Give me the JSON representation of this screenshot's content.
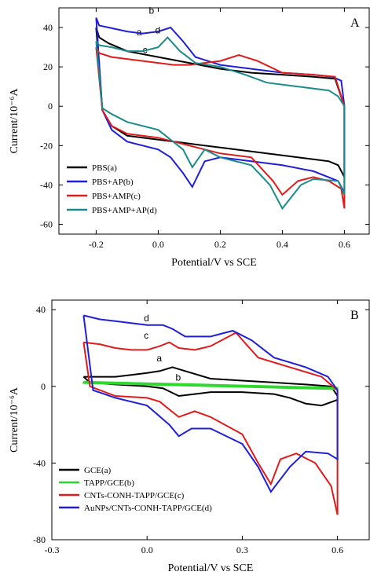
{
  "chart_data": [
    {
      "type": "line",
      "panel_label": "A",
      "xlabel": "Potential/V vs SCE",
      "ylabel": "Current/10⁻⁶A",
      "xlim": [
        -0.32,
        0.68
      ],
      "ylim": [
        -65,
        50
      ],
      "xticks": [
        "-0.2",
        "0.0",
        "0.2",
        "0.4",
        "0.6"
      ],
      "yticks": [
        "-60",
        "-40",
        "-20",
        "0",
        "20",
        "40"
      ],
      "legend_position": "bottom-left",
      "series": [
        {
          "name": "PBS(a)",
          "label": "a",
          "color": "#000000",
          "x": [
            -0.2,
            -0.19,
            -0.16,
            -0.1,
            0.0,
            0.1,
            0.2,
            0.3,
            0.4,
            0.5,
            0.57,
            0.6,
            0.6,
            0.58,
            0.55,
            0.5,
            0.4,
            0.3,
            0.2,
            0.1,
            0.0,
            -0.1,
            -0.15,
            -0.18,
            -0.2
          ],
          "y": [
            40,
            35,
            32,
            28,
            25,
            22,
            19,
            17,
            16,
            15,
            14,
            0,
            -36,
            -30,
            -28,
            -27,
            -25,
            -23,
            -21,
            -19,
            -17,
            -15,
            -10,
            -2,
            40
          ]
        },
        {
          "name": "PBS+AP(b)",
          "label": "b",
          "color": "#1f1fd9",
          "x": [
            -0.2,
            -0.19,
            -0.16,
            -0.1,
            -0.05,
            0.0,
            0.04,
            0.08,
            0.12,
            0.2,
            0.3,
            0.4,
            0.5,
            0.56,
            0.59,
            0.6,
            0.6,
            0.58,
            0.5,
            0.4,
            0.3,
            0.2,
            0.15,
            0.11,
            0.08,
            0.04,
            0.0,
            -0.1,
            -0.15,
            -0.18,
            -0.2
          ],
          "y": [
            45,
            41,
            40,
            38,
            37,
            38,
            40,
            33,
            25,
            21,
            19,
            17,
            16,
            15,
            13,
            0,
            -44,
            -38,
            -33,
            -30,
            -28,
            -26,
            -28,
            -41,
            -34,
            -26,
            -22,
            -18,
            -12,
            -2,
            45
          ]
        },
        {
          "name": "PBS+AMP(c)",
          "label": "c",
          "color": "#e01b1b",
          "x": [
            -0.2,
            -0.19,
            -0.15,
            -0.1,
            -0.05,
            0.0,
            0.05,
            0.1,
            0.15,
            0.2,
            0.26,
            0.32,
            0.4,
            0.5,
            0.57,
            0.6,
            0.6,
            0.59,
            0.55,
            0.5,
            0.45,
            0.4,
            0.37,
            0.3,
            0.2,
            0.1,
            0.0,
            -0.1,
            -0.15,
            -0.18,
            -0.2
          ],
          "y": [
            30,
            27,
            25,
            24,
            23,
            22,
            21,
            21,
            22,
            23,
            26,
            23,
            17,
            16,
            15,
            0,
            -52,
            -42,
            -38,
            -36,
            -38,
            -45,
            -38,
            -26,
            -24,
            -20,
            -16,
            -14,
            -10,
            -2,
            30
          ]
        },
        {
          "name": "PBS+AMP+AP(d)",
          "label": "d",
          "color": "#1a8a8a",
          "x": [
            -0.2,
            -0.19,
            -0.15,
            -0.1,
            -0.05,
            0.0,
            0.03,
            0.07,
            0.12,
            0.2,
            0.28,
            0.35,
            0.45,
            0.55,
            0.58,
            0.6,
            0.6,
            0.58,
            0.5,
            0.46,
            0.4,
            0.36,
            0.3,
            0.2,
            0.15,
            0.11,
            0.08,
            0.0,
            -0.1,
            -0.15,
            -0.18,
            -0.2
          ],
          "y": [
            33,
            31,
            30,
            28,
            28,
            30,
            35,
            28,
            22,
            20,
            16,
            12,
            10,
            8,
            5,
            0,
            -45,
            -38,
            -37,
            -40,
            -52,
            -40,
            -30,
            -26,
            -22,
            -31,
            -22,
            -12,
            -8,
            -4,
            -1,
            33
          ]
        }
      ]
    },
    {
      "type": "line",
      "panel_label": "B",
      "xlabel": "Potential/V vs SCE",
      "ylabel": "Current/10⁻⁶A",
      "xlim": [
        -0.3,
        0.7
      ],
      "ylim": [
        -80,
        45
      ],
      "xticks": [
        "-0.3",
        "0.0",
        "0.3",
        "0.6"
      ],
      "yticks": [
        "-80",
        "-40",
        "0",
        "40"
      ],
      "legend_position": "bottom-left",
      "series": [
        {
          "name": "GCE(a)",
          "label": "a",
          "color": "#000000",
          "x": [
            -0.2,
            -0.15,
            -0.1,
            -0.05,
            0.0,
            0.04,
            0.08,
            0.12,
            0.2,
            0.3,
            0.4,
            0.5,
            0.58,
            0.6,
            0.6,
            0.55,
            0.5,
            0.45,
            0.4,
            0.3,
            0.2,
            0.15,
            0.1,
            0.05,
            0.0,
            -0.1,
            -0.18,
            -0.2
          ],
          "y": [
            5,
            5,
            5,
            6,
            7,
            8,
            10,
            8,
            4,
            3,
            2,
            1,
            0,
            -5,
            -7,
            -10,
            -9,
            -6,
            -4,
            -3,
            -3,
            -4,
            -5,
            -1,
            0,
            1,
            2,
            5
          ]
        },
        {
          "name": "TAPP/GCE(b)",
          "label": "b",
          "color": "#2ed82e",
          "x": [
            -0.2,
            -0.1,
            0.0,
            0.1,
            0.2,
            0.3,
            0.4,
            0.5,
            0.6,
            0.6,
            0.5,
            0.4,
            0.3,
            0.2,
            0.1,
            0.0,
            -0.1,
            -0.2,
            -0.2
          ],
          "y": [
            2.5,
            2.1,
            1.7,
            1.3,
            0.9,
            0.5,
            0.1,
            -0.3,
            -0.7,
            -1.5,
            -1.1,
            -0.7,
            -0.3,
            0.1,
            0.5,
            0.9,
            1.3,
            1.7,
            2.5
          ]
        },
        {
          "name": "CNTs-CONH-TAPP/GCE(c)",
          "label": "c",
          "color": "#e01b1b",
          "x": [
            -0.2,
            -0.15,
            -0.1,
            -0.05,
            0.0,
            0.04,
            0.07,
            0.1,
            0.15,
            0.2,
            0.28,
            0.35,
            0.45,
            0.55,
            0.6,
            0.6,
            0.58,
            0.53,
            0.47,
            0.42,
            0.39,
            0.35,
            0.3,
            0.2,
            0.15,
            0.1,
            0.07,
            0.04,
            0.0,
            -0.1,
            -0.18,
            -0.2
          ],
          "y": [
            23,
            22,
            20,
            19,
            19,
            21,
            23,
            20,
            19,
            21,
            28,
            15,
            10,
            5,
            -2,
            -67,
            -52,
            -40,
            -35,
            -38,
            -51,
            -40,
            -25,
            -16,
            -13,
            -16,
            -12,
            -8,
            -6,
            -5,
            0,
            23
          ]
        },
        {
          "name": "AuNPs/CNTs-CONH-TAPP/GCE(d)",
          "label": "d",
          "color": "#1f1fd9",
          "x": [
            -0.2,
            -0.15,
            -0.1,
            -0.05,
            0.0,
            0.05,
            0.08,
            0.12,
            0.2,
            0.27,
            0.33,
            0.4,
            0.5,
            0.57,
            0.6,
            0.6,
            0.57,
            0.5,
            0.45,
            0.39,
            0.35,
            0.3,
            0.2,
            0.14,
            0.1,
            0.07,
            0.0,
            -0.1,
            -0.17,
            -0.2
          ],
          "y": [
            37,
            35,
            34,
            33,
            32,
            32,
            30,
            26,
            26,
            29,
            24,
            15,
            10,
            5,
            -2,
            -38,
            -35,
            -34,
            -42,
            -55,
            -42,
            -30,
            -22,
            -22,
            -26,
            -20,
            -10,
            -6,
            -2,
            37
          ]
        }
      ]
    }
  ]
}
